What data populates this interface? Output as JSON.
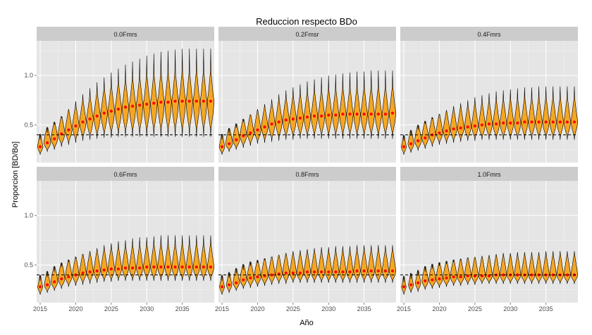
{
  "chart_data": {
    "type": "violin",
    "title": "Reduccion respecto BDo",
    "xlabel": "Año",
    "ylabel": "Proporcion [BD/Bo]",
    "xlim": [
      2014.5,
      2039.5
    ],
    "ylim": [
      0.12,
      1.35
    ],
    "x_ticks": [
      2015,
      2020,
      2025,
      2030,
      2035
    ],
    "y_ticks": [
      0.5,
      1.0
    ],
    "y_tick_labels": [
      "0.5",
      "1.0"
    ],
    "reference_line": 0.4,
    "grid": true,
    "layout": "2 rows x 3 columns facets",
    "colors": {
      "violin_fill": "#f5a623",
      "median_point": "#ff0000",
      "panel_background": "#e5e5e5",
      "strip_background": "#cccccc"
    },
    "years": [
      2015,
      2016,
      2017,
      2018,
      2019,
      2020,
      2021,
      2022,
      2023,
      2024,
      2025,
      2026,
      2027,
      2028,
      2029,
      2030,
      2031,
      2032,
      2033,
      2034,
      2035,
      2036,
      2037,
      2038,
      2039
    ],
    "panels": [
      {
        "label": "0.0Fmrs",
        "median": [
          0.28,
          0.32,
          0.36,
          0.41,
          0.45,
          0.49,
          0.53,
          0.56,
          0.59,
          0.62,
          0.64,
          0.66,
          0.68,
          0.69,
          0.7,
          0.71,
          0.72,
          0.73,
          0.73,
          0.74,
          0.74,
          0.74,
          0.74,
          0.74,
          0.74
        ],
        "upper": [
          0.35,
          0.42,
          0.5,
          0.57,
          0.66,
          0.74,
          0.81,
          0.87,
          0.93,
          0.98,
          1.03,
          1.07,
          1.11,
          1.14,
          1.17,
          1.2,
          1.22,
          1.24,
          1.25,
          1.26,
          1.27,
          1.27,
          1.27,
          1.27,
          1.27
        ],
        "lower": [
          0.2,
          0.23,
          0.25,
          0.28,
          0.3,
          0.32,
          0.34,
          0.35,
          0.36,
          0.37,
          0.37,
          0.38,
          0.38,
          0.38,
          0.38,
          0.38,
          0.38,
          0.38,
          0.38,
          0.38,
          0.38,
          0.38,
          0.38,
          0.38,
          0.38
        ]
      },
      {
        "label": "0.2Fmsr",
        "median": [
          0.28,
          0.31,
          0.35,
          0.39,
          0.42,
          0.45,
          0.48,
          0.51,
          0.53,
          0.55,
          0.56,
          0.57,
          0.58,
          0.59,
          0.59,
          0.6,
          0.6,
          0.61,
          0.61,
          0.61,
          0.61,
          0.61,
          0.61,
          0.61,
          0.62
        ],
        "upper": [
          0.35,
          0.41,
          0.47,
          0.53,
          0.6,
          0.66,
          0.71,
          0.76,
          0.81,
          0.85,
          0.88,
          0.91,
          0.94,
          0.96,
          0.98,
          1.0,
          1.01,
          1.02,
          1.03,
          1.04,
          1.04,
          1.05,
          1.05,
          1.05,
          1.05
        ],
        "lower": [
          0.2,
          0.23,
          0.25,
          0.27,
          0.29,
          0.31,
          0.32,
          0.33,
          0.34,
          0.35,
          0.35,
          0.36,
          0.36,
          0.36,
          0.36,
          0.36,
          0.36,
          0.36,
          0.36,
          0.36,
          0.36,
          0.36,
          0.36,
          0.36,
          0.36
        ]
      },
      {
        "label": "0.4Fmrs",
        "median": [
          0.28,
          0.31,
          0.34,
          0.37,
          0.4,
          0.42,
          0.44,
          0.46,
          0.47,
          0.48,
          0.49,
          0.5,
          0.51,
          0.51,
          0.52,
          0.52,
          0.52,
          0.53,
          0.53,
          0.53,
          0.53,
          0.53,
          0.53,
          0.53,
          0.53
        ],
        "upper": [
          0.34,
          0.39,
          0.45,
          0.51,
          0.56,
          0.61,
          0.65,
          0.69,
          0.72,
          0.75,
          0.78,
          0.8,
          0.82,
          0.84,
          0.85,
          0.86,
          0.87,
          0.88,
          0.88,
          0.89,
          0.89,
          0.89,
          0.89,
          0.89,
          0.89
        ],
        "lower": [
          0.2,
          0.22,
          0.24,
          0.26,
          0.28,
          0.3,
          0.31,
          0.32,
          0.33,
          0.34,
          0.34,
          0.35,
          0.35,
          0.35,
          0.35,
          0.35,
          0.35,
          0.35,
          0.35,
          0.35,
          0.35,
          0.35,
          0.35,
          0.35,
          0.35
        ]
      },
      {
        "label": "0.6Fmrs",
        "median": [
          0.28,
          0.3,
          0.33,
          0.36,
          0.38,
          0.4,
          0.42,
          0.43,
          0.44,
          0.45,
          0.46,
          0.46,
          0.47,
          0.47,
          0.47,
          0.48,
          0.48,
          0.48,
          0.48,
          0.48,
          0.48,
          0.48,
          0.48,
          0.48,
          0.48
        ],
        "upper": [
          0.34,
          0.38,
          0.43,
          0.48,
          0.53,
          0.57,
          0.61,
          0.64,
          0.67,
          0.7,
          0.72,
          0.74,
          0.75,
          0.77,
          0.78,
          0.78,
          0.79,
          0.8,
          0.8,
          0.8,
          0.8,
          0.8,
          0.8,
          0.8,
          0.8
        ],
        "lower": [
          0.2,
          0.22,
          0.24,
          0.26,
          0.28,
          0.29,
          0.3,
          0.31,
          0.32,
          0.33,
          0.33,
          0.34,
          0.34,
          0.34,
          0.34,
          0.34,
          0.34,
          0.34,
          0.34,
          0.34,
          0.34,
          0.34,
          0.34,
          0.34,
          0.34
        ]
      },
      {
        "label": "0.8Fmrs",
        "median": [
          0.28,
          0.3,
          0.32,
          0.35,
          0.37,
          0.38,
          0.39,
          0.4,
          0.41,
          0.42,
          0.42,
          0.42,
          0.43,
          0.43,
          0.43,
          0.43,
          0.43,
          0.43,
          0.43,
          0.44,
          0.44,
          0.44,
          0.44,
          0.44,
          0.44
        ],
        "upper": [
          0.34,
          0.37,
          0.41,
          0.45,
          0.49,
          0.52,
          0.55,
          0.58,
          0.6,
          0.62,
          0.64,
          0.65,
          0.66,
          0.67,
          0.68,
          0.68,
          0.69,
          0.69,
          0.69,
          0.7,
          0.7,
          0.7,
          0.7,
          0.7,
          0.7
        ],
        "lower": [
          0.2,
          0.22,
          0.24,
          0.26,
          0.27,
          0.28,
          0.29,
          0.3,
          0.31,
          0.31,
          0.32,
          0.32,
          0.32,
          0.32,
          0.32,
          0.32,
          0.32,
          0.32,
          0.32,
          0.32,
          0.32,
          0.32,
          0.32,
          0.32,
          0.32
        ]
      },
      {
        "label": "1.0Fmrs",
        "median": [
          0.28,
          0.3,
          0.32,
          0.34,
          0.35,
          0.36,
          0.37,
          0.38,
          0.38,
          0.39,
          0.39,
          0.39,
          0.39,
          0.4,
          0.4,
          0.4,
          0.4,
          0.4,
          0.4,
          0.4,
          0.4,
          0.4,
          0.4,
          0.4,
          0.4
        ],
        "upper": [
          0.33,
          0.36,
          0.39,
          0.43,
          0.46,
          0.49,
          0.51,
          0.53,
          0.55,
          0.57,
          0.58,
          0.59,
          0.6,
          0.61,
          0.62,
          0.62,
          0.63,
          0.63,
          0.63,
          0.63,
          0.64,
          0.64,
          0.64,
          0.64,
          0.64
        ],
        "lower": [
          0.2,
          0.22,
          0.23,
          0.25,
          0.26,
          0.27,
          0.28,
          0.29,
          0.29,
          0.3,
          0.3,
          0.31,
          0.31,
          0.31,
          0.31,
          0.31,
          0.31,
          0.31,
          0.31,
          0.31,
          0.31,
          0.31,
          0.31,
          0.31,
          0.31
        ]
      }
    ]
  }
}
